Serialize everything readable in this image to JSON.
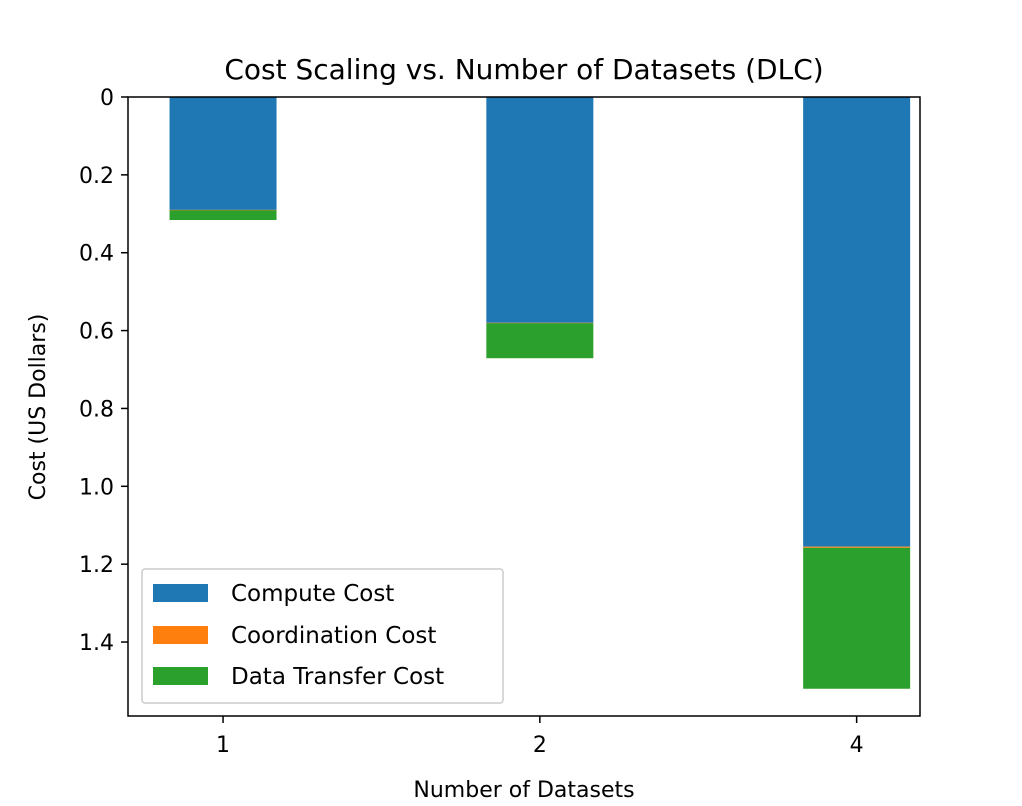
{
  "chart_data": {
    "type": "bar",
    "stacked": true,
    "y_inverted": true,
    "title": "Cost Scaling vs. Number of Datasets (DLC)",
    "xlabel": "Number of Datasets",
    "ylabel": "Cost (US Dollars)",
    "categories": [
      "1",
      "2",
      "4"
    ],
    "ylim": [
      0,
      1.59
    ],
    "yticks": [
      0,
      0.2,
      0.4,
      0.6,
      0.8,
      1.0,
      1.2,
      1.4
    ],
    "ytick_labels": [
      "0",
      "0.2",
      "0.4",
      "0.6",
      "0.8",
      "1.0",
      "1.2",
      "1.4"
    ],
    "series": [
      {
        "name": "Compute Cost",
        "color": "#1f77b4",
        "values": [
          0.29,
          0.58,
          1.155
        ]
      },
      {
        "name": "Coordination Cost",
        "color": "#ff7f0e",
        "values": [
          0.001,
          0.001,
          0.003
        ]
      },
      {
        "name": "Data Transfer Cost",
        "color": "#2ca02c",
        "values": [
          0.025,
          0.09,
          0.362
        ]
      }
    ],
    "legend_position": "lower-left",
    "grid": false
  }
}
